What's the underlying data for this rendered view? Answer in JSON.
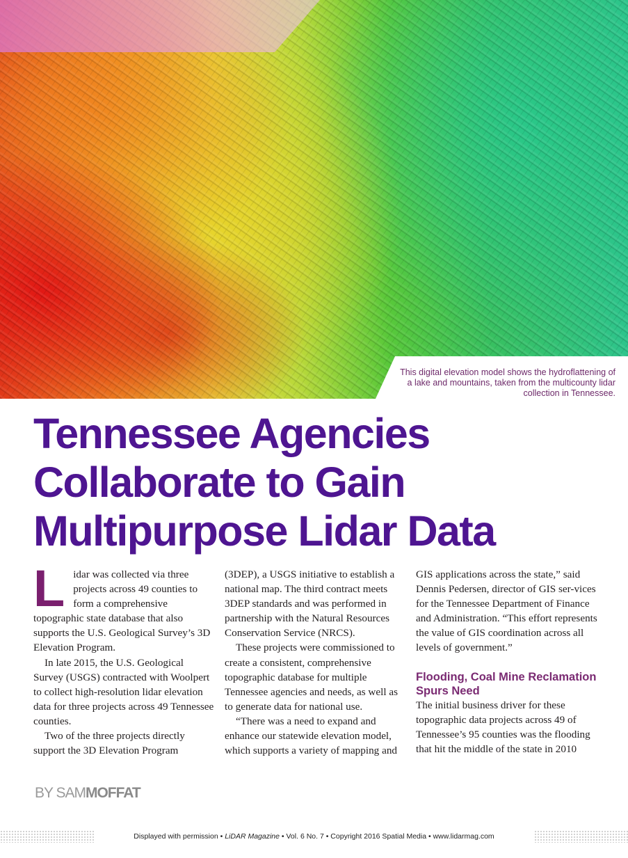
{
  "hero": {
    "caption": "This digital elevation model shows the hydroflattening of a lake and mountains, taken from the multicounty lidar collection in Tennessee."
  },
  "article": {
    "title_lines": [
      "Tennessee Agencies",
      "Collaborate to Gain",
      "Multipurpose Lidar Data"
    ],
    "drop_cap": "L",
    "paragraphs": [
      "idar was collected via three projects across 49 counties to form a comprehensive topographic state database that also supports the U.S. Geological Survey’s 3D Elevation Program.",
      "In late 2015, the U.S. Geological Survey (USGS) contracted with Woolpert to collect high-resolution lidar elevation data for three projects across 49 Tennessee counties.",
      "Two of the three projects directly support the 3D Elevation Program",
      "(3DEP), a USGS initiative to establish a national map. The third contract meets 3DEP standards and was performed in partnership with the Natural Resources Conservation Service (NRCS).",
      "These projects were commissioned to create a consistent, comprehensive topographic database for multiple Tennessee agencies and needs, as well as to generate data for national use.",
      "“There was a need to expand and enhance our statewide elevation model, which supports a variety of mapping and",
      "GIS applications across the state,” said Dennis Pedersen, director of GIS ser-vices for the Tennessee Department of Finance and Administration. “This effort represents the value of GIS coordination across all levels of government.”",
      "The initial business driver for these topographic data projects across 49 of Tennessee’s 95 counties was the flooding that hit the middle of the state in 2010"
    ],
    "subhead": "Flooding, Coal Mine Reclamation Spurs Need",
    "byline_prefix": "BY SAM",
    "byline_name": "MOFFAT"
  },
  "footer": {
    "prefix": "Displayed with permission • ",
    "magazine": "LiDAR Magazine",
    "suffix": " • Vol. 6 No. 7 • Copyright 2016 Spatial Media • www.lidarmag.com"
  },
  "colors": {
    "title": "#4e1591",
    "accent": "#7a1f6e",
    "byline": "#9a9a9a"
  }
}
